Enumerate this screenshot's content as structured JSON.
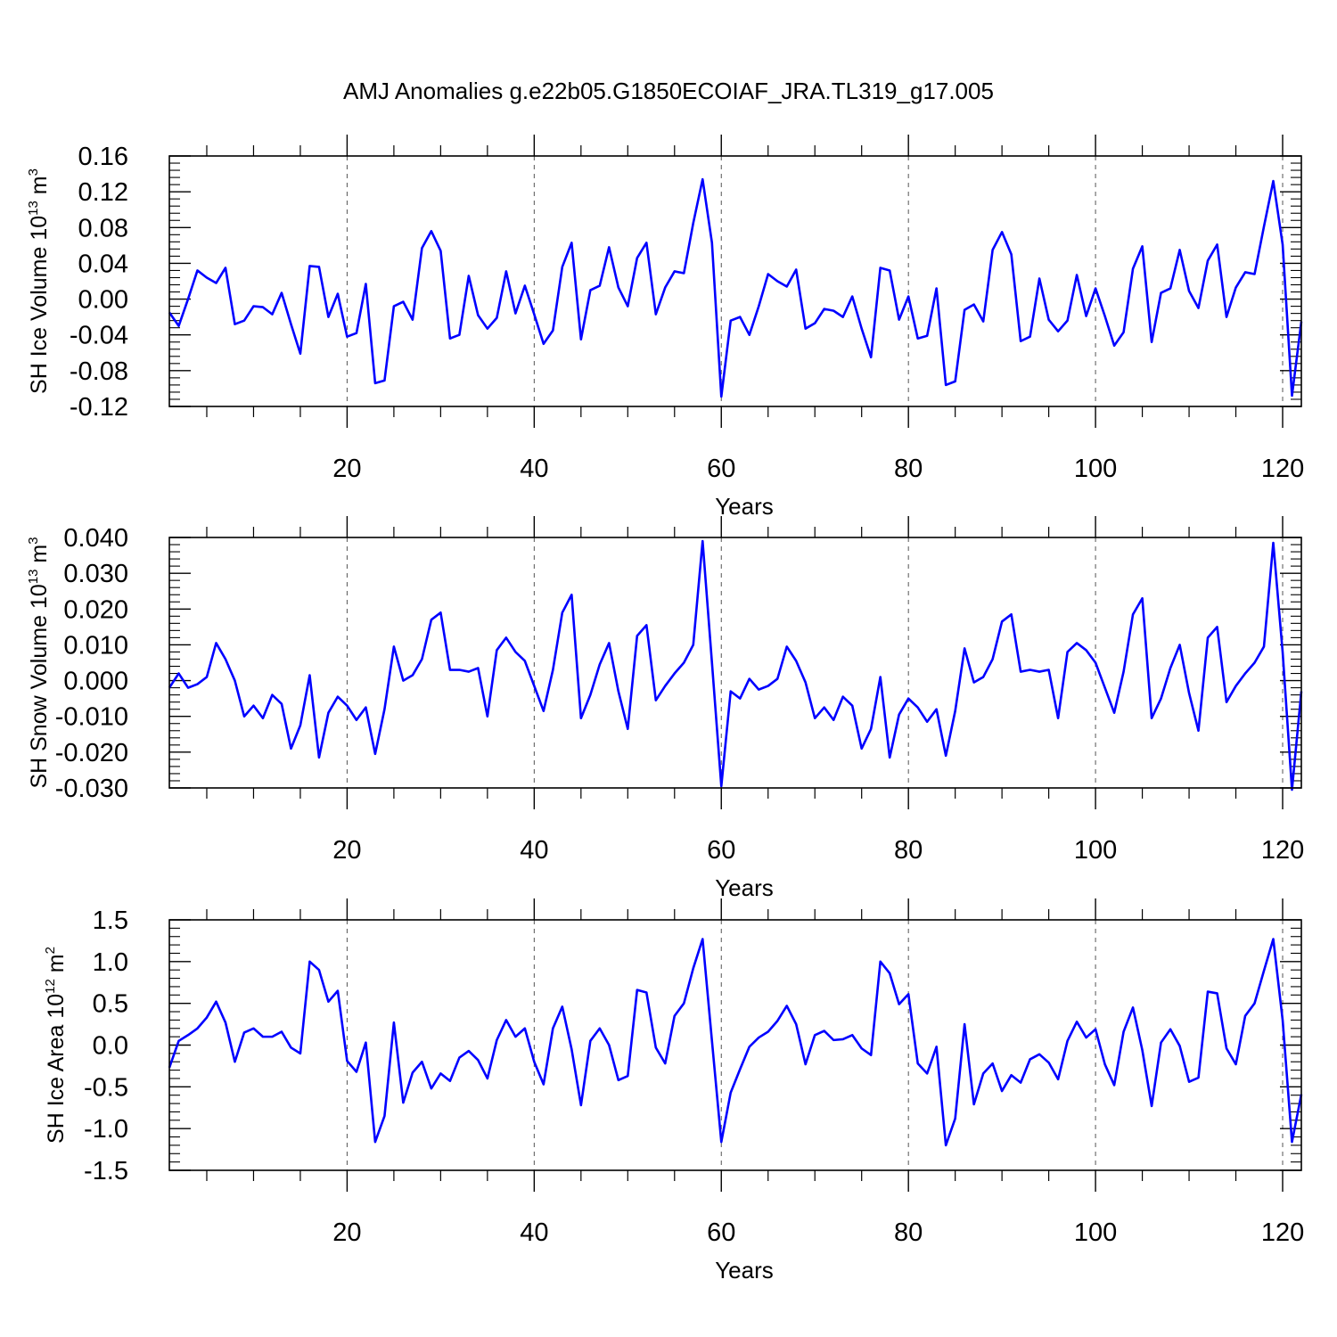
{
  "title": "AMJ Anomalies g.e22b05.G1850ECOIAF_JRA.TL319_g17.005",
  "line_color": "#0000ff",
  "chart_data": [
    {
      "type": "line",
      "ylabel": {
        "text": "SH Ice Volume 10",
        "sup": "13",
        "unit": " m",
        "unit_sup": "3"
      },
      "xlabel": "Years",
      "xlim": [
        1,
        122
      ],
      "ylim": [
        -0.12,
        0.16
      ],
      "yticks": [
        -0.12,
        -0.08,
        -0.04,
        0.0,
        0.04,
        0.08,
        0.12,
        0.16
      ],
      "ytick_labels": [
        "-0.12",
        "-0.08",
        "-0.04",
        "0.00",
        "0.04",
        "0.08",
        "0.12",
        "0.16"
      ],
      "xticks": [
        20,
        40,
        60,
        80,
        100,
        120
      ],
      "xtick_labels": [
        "20",
        "40",
        "60",
        "80",
        "100",
        "120"
      ],
      "grid_x": [
        20,
        40,
        60,
        80,
        100,
        120
      ],
      "values": [
        -0.015,
        -0.03,
        0.0,
        0.032,
        0.024,
        0.018,
        0.035,
        -0.028,
        -0.024,
        -0.008,
        -0.009,
        -0.017,
        0.007,
        -0.028,
        -0.061,
        0.037,
        0.036,
        -0.02,
        0.006,
        -0.042,
        -0.038,
        0.017,
        -0.094,
        -0.091,
        -0.008,
        -0.003,
        -0.023,
        0.057,
        0.076,
        0.054,
        -0.044,
        -0.04,
        0.026,
        -0.018,
        -0.033,
        -0.021,
        0.031,
        -0.016,
        0.015,
        -0.017,
        -0.05,
        -0.035,
        0.036,
        0.063,
        -0.045,
        0.01,
        0.015,
        0.058,
        0.013,
        -0.008,
        0.046,
        0.063,
        -0.017,
        0.013,
        0.031,
        0.029,
        0.085,
        0.134,
        0.063,
        -0.109,
        -0.024,
        -0.02,
        -0.04,
        -0.008,
        0.028,
        0.02,
        0.014,
        0.033,
        -0.033,
        -0.027,
        -0.011,
        -0.013,
        -0.02,
        0.003,
        -0.033,
        -0.065,
        0.035,
        0.032,
        -0.023,
        0.003,
        -0.044,
        -0.041,
        0.012,
        -0.096,
        -0.092,
        -0.012,
        -0.006,
        -0.025,
        0.055,
        0.075,
        0.05,
        -0.047,
        -0.042,
        0.023,
        -0.023,
        -0.036,
        -0.024,
        0.027,
        -0.019,
        0.012,
        -0.019,
        -0.052,
        -0.037,
        0.034,
        0.059,
        -0.048,
        0.007,
        0.012,
        0.055,
        0.009,
        -0.01,
        0.043,
        0.061,
        -0.02,
        0.013,
        0.03,
        0.028,
        0.081,
        0.132,
        0.061,
        -0.108,
        -0.025
      ]
    },
    {
      "type": "line",
      "ylabel": {
        "text": "SH Snow Volume 10",
        "sup": "13",
        "unit": " m",
        "unit_sup": "3"
      },
      "xlabel": "Years",
      "xlim": [
        1,
        122
      ],
      "ylim": [
        -0.03,
        0.04
      ],
      "yticks": [
        -0.03,
        -0.02,
        -0.01,
        0.0,
        0.01,
        0.02,
        0.03,
        0.04
      ],
      "ytick_labels": [
        "-0.030",
        "-0.020",
        "-0.010",
        "0.000",
        "0.010",
        "0.020",
        "0.030",
        "0.040"
      ],
      "xticks": [
        20,
        40,
        60,
        80,
        100,
        120
      ],
      "xtick_labels": [
        "20",
        "40",
        "60",
        "80",
        "100",
        "120"
      ],
      "grid_x": [
        20,
        40,
        60,
        80,
        100,
        120
      ],
      "values": [
        -0.002,
        0.002,
        -0.002,
        -0.001,
        0.001,
        0.0105,
        0.006,
        0.0,
        -0.01,
        -0.007,
        -0.0105,
        -0.004,
        -0.0065,
        -0.019,
        -0.0125,
        0.0015,
        -0.0215,
        -0.009,
        -0.0045,
        -0.007,
        -0.011,
        -0.0075,
        -0.0205,
        -0.008,
        0.0095,
        0.0,
        0.0015,
        0.006,
        0.017,
        0.019,
        0.003,
        0.003,
        0.0025,
        0.0035,
        -0.01,
        0.0085,
        0.012,
        0.008,
        0.0055,
        -0.0015,
        -0.0085,
        0.003,
        0.019,
        0.024,
        -0.0105,
        -0.004,
        0.0045,
        0.0105,
        -0.003,
        -0.0135,
        0.0125,
        0.0155,
        -0.0055,
        -0.0015,
        0.002,
        0.005,
        0.01,
        0.039,
        0.005,
        -0.0295,
        -0.003,
        -0.005,
        0.0005,
        -0.0025,
        -0.0015,
        0.0005,
        0.0095,
        0.0055,
        -0.0005,
        -0.0105,
        -0.0075,
        -0.011,
        -0.0045,
        -0.007,
        -0.019,
        -0.0135,
        0.001,
        -0.0215,
        -0.0095,
        -0.005,
        -0.0075,
        -0.0115,
        -0.008,
        -0.021,
        -0.0085,
        0.009,
        -0.0005,
        0.001,
        0.006,
        0.0165,
        0.0185,
        0.0025,
        0.003,
        0.0025,
        0.003,
        -0.0105,
        0.008,
        0.0105,
        0.0085,
        0.005,
        -0.002,
        -0.009,
        0.0025,
        0.0185,
        0.023,
        -0.0105,
        -0.005,
        0.0035,
        0.01,
        -0.0035,
        -0.014,
        0.012,
        0.015,
        -0.006,
        -0.0015,
        0.002,
        0.005,
        0.0095,
        0.0385,
        0.008,
        -0.0305,
        -0.003
      ]
    },
    {
      "type": "line",
      "ylabel": {
        "text": "SH Ice Area 10",
        "sup": "12",
        "unit": " m",
        "unit_sup": "2"
      },
      "xlabel": "Years",
      "xlim": [
        1,
        122
      ],
      "ylim": [
        -1.5,
        1.5
      ],
      "yticks": [
        -1.5,
        -1.0,
        -0.5,
        0.0,
        0.5,
        1.0,
        1.5
      ],
      "ytick_labels": [
        "-1.5",
        "-1.0",
        "-0.5",
        "0.0",
        "0.5",
        "1.0",
        "1.5"
      ],
      "xticks": [
        20,
        40,
        60,
        80,
        100,
        120
      ],
      "xtick_labels": [
        "20",
        "40",
        "60",
        "80",
        "100",
        "120"
      ],
      "grid_x": [
        20,
        40,
        60,
        80,
        100,
        120
      ],
      "values": [
        -0.27,
        0.05,
        0.12,
        0.2,
        0.33,
        0.52,
        0.27,
        -0.2,
        0.15,
        0.2,
        0.1,
        0.1,
        0.16,
        -0.03,
        -0.1,
        1.0,
        0.9,
        0.52,
        0.65,
        -0.19,
        -0.32,
        0.03,
        -1.16,
        -0.85,
        0.27,
        -0.69,
        -0.33,
        -0.2,
        -0.52,
        -0.34,
        -0.43,
        -0.15,
        -0.07,
        -0.18,
        -0.4,
        0.06,
        0.3,
        0.1,
        0.2,
        -0.2,
        -0.47,
        0.2,
        0.46,
        -0.05,
        -0.72,
        0.05,
        0.2,
        0.0,
        -0.42,
        -0.37,
        0.66,
        0.63,
        -0.03,
        -0.22,
        0.35,
        0.5,
        0.92,
        1.27,
        0.05,
        -1.16,
        -0.57,
        -0.29,
        -0.02,
        0.09,
        0.16,
        0.29,
        0.47,
        0.25,
        -0.23,
        0.12,
        0.17,
        0.06,
        0.07,
        0.12,
        -0.04,
        -0.12,
        1.0,
        0.86,
        0.49,
        0.61,
        -0.22,
        -0.34,
        -0.02,
        -1.2,
        -0.88,
        0.25,
        -0.71,
        -0.34,
        -0.22,
        -0.55,
        -0.36,
        -0.45,
        -0.17,
        -0.11,
        -0.21,
        -0.41,
        0.05,
        0.28,
        0.09,
        0.19,
        -0.23,
        -0.48,
        0.16,
        0.45,
        -0.06,
        -0.73,
        0.03,
        0.19,
        -0.01,
        -0.44,
        -0.39,
        0.64,
        0.62,
        -0.04,
        -0.23,
        0.35,
        0.5,
        0.89,
        1.27,
        0.3,
        -1.16,
        -0.59
      ]
    }
  ]
}
